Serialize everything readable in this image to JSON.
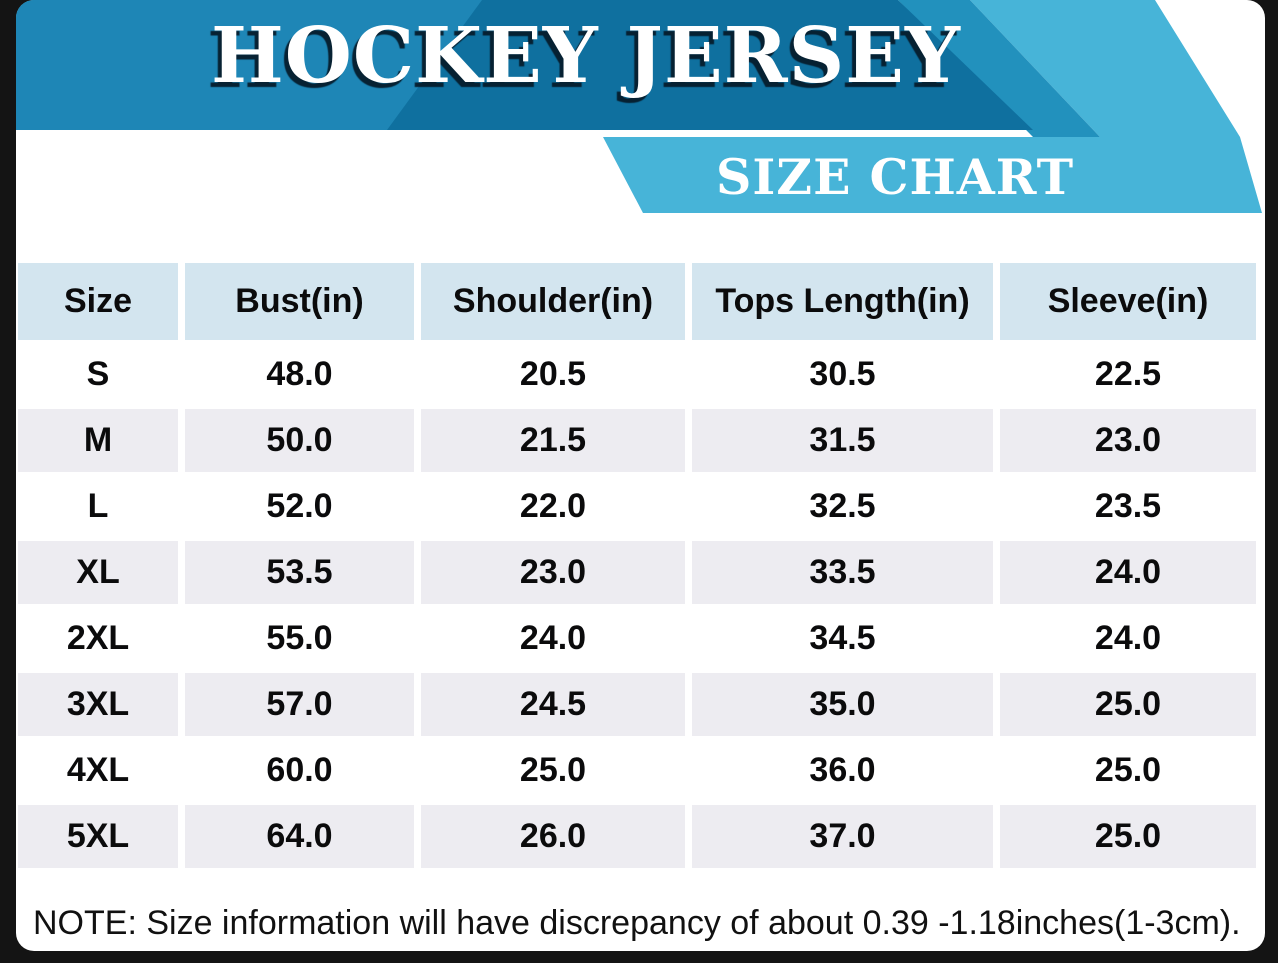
{
  "banner": {
    "title": "HOCKEY JERSEY",
    "subtitle": "SIZE CHART"
  },
  "table": {
    "columns": [
      "Size",
      "Bust(in)",
      "Shoulder(in)",
      "Tops Length(in)",
      "Sleeve(in)"
    ],
    "rows": [
      {
        "size": "S",
        "bust": "48.0",
        "shoulder": "20.5",
        "tops_length": "30.5",
        "sleeve": "22.5"
      },
      {
        "size": "M",
        "bust": "50.0",
        "shoulder": "21.5",
        "tops_length": "31.5",
        "sleeve": "23.0"
      },
      {
        "size": "L",
        "bust": "52.0",
        "shoulder": "22.0",
        "tops_length": "32.5",
        "sleeve": "23.5"
      },
      {
        "size": "XL",
        "bust": "53.5",
        "shoulder": "23.0",
        "tops_length": "33.5",
        "sleeve": "24.0"
      },
      {
        "size": "2XL",
        "bust": "55.0",
        "shoulder": "24.0",
        "tops_length": "34.5",
        "sleeve": "24.0"
      },
      {
        "size": "3XL",
        "bust": "57.0",
        "shoulder": "24.5",
        "tops_length": "35.0",
        "sleeve": "25.0"
      },
      {
        "size": "4XL",
        "bust": "60.0",
        "shoulder": "25.0",
        "tops_length": "36.0",
        "sleeve": "25.0"
      },
      {
        "size": "5XL",
        "bust": "64.0",
        "shoulder": "26.0",
        "tops_length": "37.0",
        "sleeve": "25.0"
      }
    ]
  },
  "note": "NOTE: Size information will have discrepancy of about 0.39 -1.18inches(1-3cm).",
  "colors": {
    "band_dark": "#0f709f",
    "band_bright": "#1e86b6",
    "wedge_medium": "#2291bd",
    "ribbon_light": "#47b4d8",
    "header_cell": "#d3e5ef",
    "row_alt": "#edecf1",
    "frame": "#141414"
  }
}
